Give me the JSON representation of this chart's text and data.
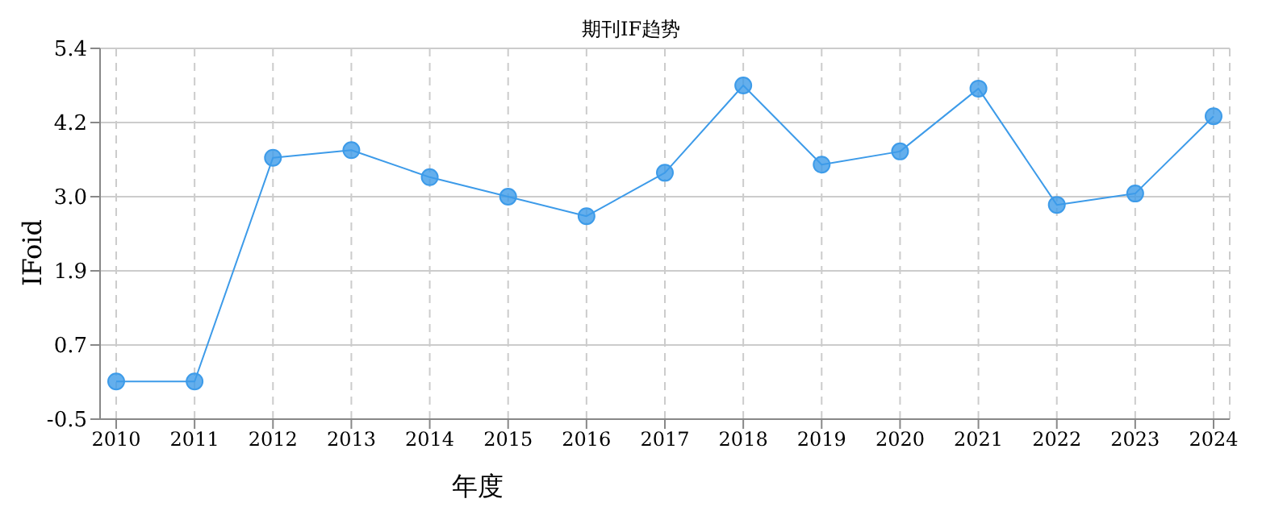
{
  "chart_data": {
    "type": "line",
    "title": "期刊IF趋势",
    "xlabel": "年度",
    "ylabel": "IFoid",
    "categories": [
      "2010",
      "2011",
      "2012",
      "2013",
      "2014",
      "2015",
      "2016",
      "2017",
      "2018",
      "2019",
      "2020",
      "2021",
      "2022",
      "2023",
      "2024"
    ],
    "series": [
      {
        "color": "#3d9be9",
        "values": [
          0.1,
          0.1,
          3.66,
          3.78,
          3.35,
          3.04,
          2.73,
          3.42,
          4.81,
          3.55,
          3.76,
          4.76,
          2.91,
          3.09,
          4.32
        ]
      }
    ],
    "ylim": [
      -0.5,
      5.4
    ],
    "yticks": [
      -0.5,
      {
        "value": 0.68,
        "label": "0.7"
      },
      {
        "value": 1.86,
        "label": "1.9"
      },
      {
        "value": 3.04,
        "label": "3.0"
      },
      {
        "value": 4.22,
        "label": "4.2"
      },
      5.4
    ],
    "grid": true,
    "marker": "circle",
    "line_style": "solid"
  }
}
